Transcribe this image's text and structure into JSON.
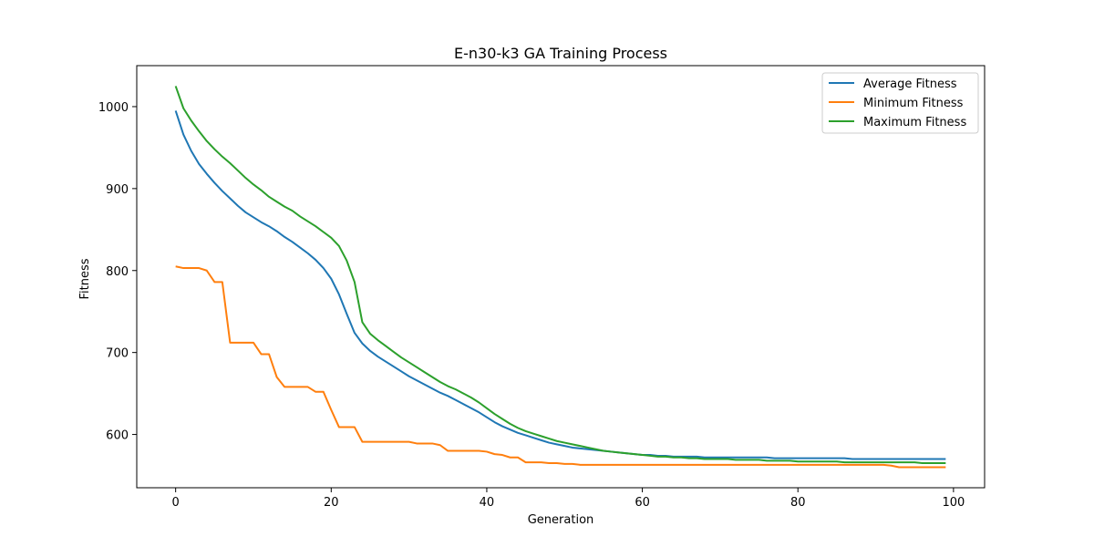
{
  "chart_data": {
    "type": "line",
    "title": "E-n30-k3 GA  Training Process",
    "xlabel": "Generation",
    "ylabel": "Fitness",
    "xlim": [
      -5,
      104
    ],
    "ylim": [
      535,
      1050
    ],
    "xticks": [
      0,
      20,
      40,
      60,
      80,
      100
    ],
    "yticks": [
      600,
      700,
      800,
      900,
      1000
    ],
    "grid": false,
    "legend_position": "top-right",
    "x": [
      0,
      1,
      2,
      3,
      4,
      5,
      6,
      7,
      8,
      9,
      10,
      11,
      12,
      13,
      14,
      15,
      16,
      17,
      18,
      19,
      20,
      21,
      22,
      23,
      24,
      25,
      26,
      27,
      28,
      29,
      30,
      31,
      32,
      33,
      34,
      35,
      36,
      37,
      38,
      39,
      40,
      41,
      42,
      43,
      44,
      45,
      46,
      47,
      48,
      49,
      50,
      51,
      52,
      53,
      54,
      55,
      56,
      57,
      58,
      59,
      60,
      61,
      62,
      63,
      64,
      65,
      66,
      67,
      68,
      69,
      70,
      71,
      72,
      73,
      74,
      75,
      76,
      77,
      78,
      79,
      80,
      81,
      82,
      83,
      84,
      85,
      86,
      87,
      88,
      89,
      90,
      91,
      92,
      93,
      94,
      95,
      96,
      97,
      98,
      99
    ],
    "series": [
      {
        "name": "Average Fitness",
        "color": "#1f77b4",
        "values": [
          995,
          966,
          946,
          930,
          918,
          907,
          897,
          888,
          879,
          871,
          865,
          859,
          854,
          848,
          841,
          835,
          828,
          821,
          813,
          803,
          790,
          771,
          747,
          724,
          711,
          702,
          695,
          689,
          683,
          677,
          671,
          666,
          661,
          656,
          651,
          647,
          642,
          637,
          632,
          627,
          621,
          615,
          610,
          606,
          602,
          599,
          596,
          593,
          590,
          588,
          586,
          584,
          583,
          582,
          581,
          580,
          579,
          578,
          577,
          576,
          575,
          575,
          574,
          574,
          573,
          573,
          573,
          573,
          572,
          572,
          572,
          572,
          572,
          572,
          572,
          572,
          572,
          571,
          571,
          571,
          571,
          571,
          571,
          571,
          571,
          571,
          571,
          570,
          570,
          570,
          570,
          570,
          570,
          570,
          570,
          570,
          570,
          570,
          570,
          570
        ]
      },
      {
        "name": "Minimum Fitness",
        "color": "#ff7f0e",
        "values": [
          805,
          803,
          803,
          803,
          800,
          786,
          786,
          712,
          712,
          712,
          712,
          698,
          698,
          670,
          658,
          658,
          658,
          658,
          652,
          652,
          630,
          609,
          609,
          609,
          591,
          591,
          591,
          591,
          591,
          591,
          591,
          589,
          589,
          589,
          587,
          580,
          580,
          580,
          580,
          580,
          579,
          576,
          575,
          572,
          572,
          566,
          566,
          566,
          565,
          565,
          564,
          564,
          563,
          563,
          563,
          563,
          563,
          563,
          563,
          563,
          563,
          563,
          563,
          563,
          563,
          563,
          563,
          563,
          563,
          563,
          563,
          563,
          563,
          563,
          563,
          563,
          563,
          563,
          563,
          563,
          563,
          563,
          563,
          563,
          563,
          563,
          563,
          563,
          563,
          563,
          563,
          563,
          562,
          560,
          560,
          560,
          560,
          560,
          560,
          560
        ]
      },
      {
        "name": "Maximum Fitness",
        "color": "#2ca02c",
        "values": [
          1025,
          998,
          983,
          970,
          958,
          948,
          939,
          931,
          922,
          913,
          905,
          898,
          890,
          884,
          878,
          873,
          866,
          860,
          854,
          847,
          840,
          830,
          812,
          786,
          737,
          723,
          715,
          708,
          701,
          694,
          688,
          682,
          676,
          670,
          664,
          659,
          655,
          650,
          645,
          639,
          632,
          625,
          619,
          613,
          608,
          604,
          601,
          598,
          595,
          592,
          590,
          588,
          586,
          584,
          582,
          580,
          579,
          578,
          577,
          576,
          575,
          574,
          573,
          573,
          572,
          572,
          571,
          571,
          570,
          570,
          570,
          570,
          569,
          569,
          569,
          569,
          568,
          568,
          568,
          568,
          567,
          567,
          567,
          567,
          567,
          567,
          566,
          566,
          566,
          566,
          566,
          566,
          566,
          566,
          566,
          566,
          565,
          565,
          565,
          565
        ]
      }
    ]
  }
}
